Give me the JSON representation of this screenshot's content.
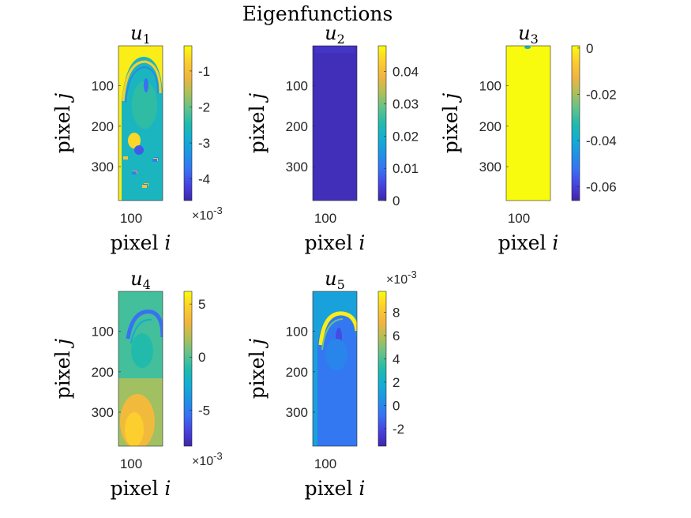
{
  "figure": {
    "title": "Eigenfunctions"
  },
  "chart_data": [
    {
      "type": "heatmap",
      "title_base": "u",
      "title_sub": "1",
      "xlabel_text": "pixel",
      "xlabel_var": "i",
      "ylabel_text": "pixel",
      "ylabel_var": "j",
      "xticks": [
        "100"
      ],
      "yticks": [
        "100",
        "200",
        "300"
      ],
      "colorbar_ticks": [
        "-1",
        "-2",
        "-3",
        "-4"
      ],
      "colorbar_exponent": "-3",
      "colorbar_exponent_position": "bottom",
      "colorbar_range": [
        -4.6,
        -0.3
      ],
      "colorbar_tick_values": [
        -1,
        -2,
        -3,
        -4
      ],
      "image_ylim": [
        1,
        384
      ],
      "ytick_values": [
        100,
        200,
        300
      ],
      "pattern": "head-sagittal-banded",
      "colormap": "parula"
    },
    {
      "type": "heatmap",
      "title_base": "u",
      "title_sub": "2",
      "xlabel_text": "pixel",
      "xlabel_var": "i",
      "ylabel_text": "pixel",
      "ylabel_var": "j",
      "xticks": [
        "100"
      ],
      "yticks": [
        "100",
        "200",
        "300"
      ],
      "colorbar_ticks": [
        "0.04",
        "0.03",
        "0.02",
        "0.01",
        "0"
      ],
      "colorbar_exponent": "",
      "colorbar_range": [
        0,
        0.048
      ],
      "colorbar_tick_values": [
        0.04,
        0.03,
        0.02,
        0.01,
        0
      ],
      "image_ylim": [
        1,
        384
      ],
      "ytick_values": [
        100,
        200,
        300
      ],
      "pattern": "uniform-low",
      "colormap": "parula"
    },
    {
      "type": "heatmap",
      "title_base": "u",
      "title_sub": "3",
      "xlabel_text": "pixel",
      "xlabel_var": "i",
      "ylabel_text": "pixel",
      "ylabel_var": "j",
      "xticks": [
        "100"
      ],
      "yticks": [
        "100",
        "200",
        "300"
      ],
      "colorbar_ticks": [
        "0",
        "-0.02",
        "-0.04",
        "-0.06"
      ],
      "colorbar_exponent": "",
      "colorbar_range": [
        -0.066,
        0.001
      ],
      "colorbar_tick_values": [
        0,
        -0.02,
        -0.04,
        -0.06
      ],
      "image_ylim": [
        1,
        384
      ],
      "ytick_values": [
        100,
        200,
        300
      ],
      "pattern": "uniform-high",
      "colormap": "parula"
    },
    {
      "type": "heatmap",
      "title_base": "u",
      "title_sub": "4",
      "xlabel_text": "pixel",
      "xlabel_var": "i",
      "ylabel_text": "pixel",
      "ylabel_var": "j",
      "xticks": [
        "100"
      ],
      "yticks": [
        "100",
        "200",
        "300"
      ],
      "colorbar_ticks": [
        "5",
        "0",
        "-5"
      ],
      "colorbar_exponent": "-3",
      "colorbar_exponent_position": "bottom",
      "colorbar_range": [
        -8.4,
        6.2
      ],
      "colorbar_tick_values": [
        5,
        0,
        -5
      ],
      "image_ylim": [
        1,
        384
      ],
      "ytick_values": [
        100,
        200,
        300
      ],
      "pattern": "head-gradient",
      "colormap": "parula"
    },
    {
      "type": "heatmap",
      "title_base": "u",
      "title_sub": "5",
      "xlabel_text": "pixel",
      "xlabel_var": "i",
      "ylabel_text": "pixel",
      "ylabel_var": "j",
      "xticks": [
        "100"
      ],
      "yticks": [
        "100",
        "200",
        "300"
      ],
      "colorbar_ticks": [
        "8",
        "6",
        "4",
        "2",
        "0",
        "-2"
      ],
      "colorbar_exponent": "-3",
      "colorbar_exponent_position": "top",
      "colorbar_range": [
        -3.5,
        9.8
      ],
      "colorbar_tick_values": [
        8,
        6,
        4,
        2,
        0,
        -2
      ],
      "image_ylim": [
        1,
        384
      ],
      "ytick_values": [
        100,
        200,
        300
      ],
      "pattern": "head-rim-bright",
      "colormap": "parula"
    }
  ]
}
